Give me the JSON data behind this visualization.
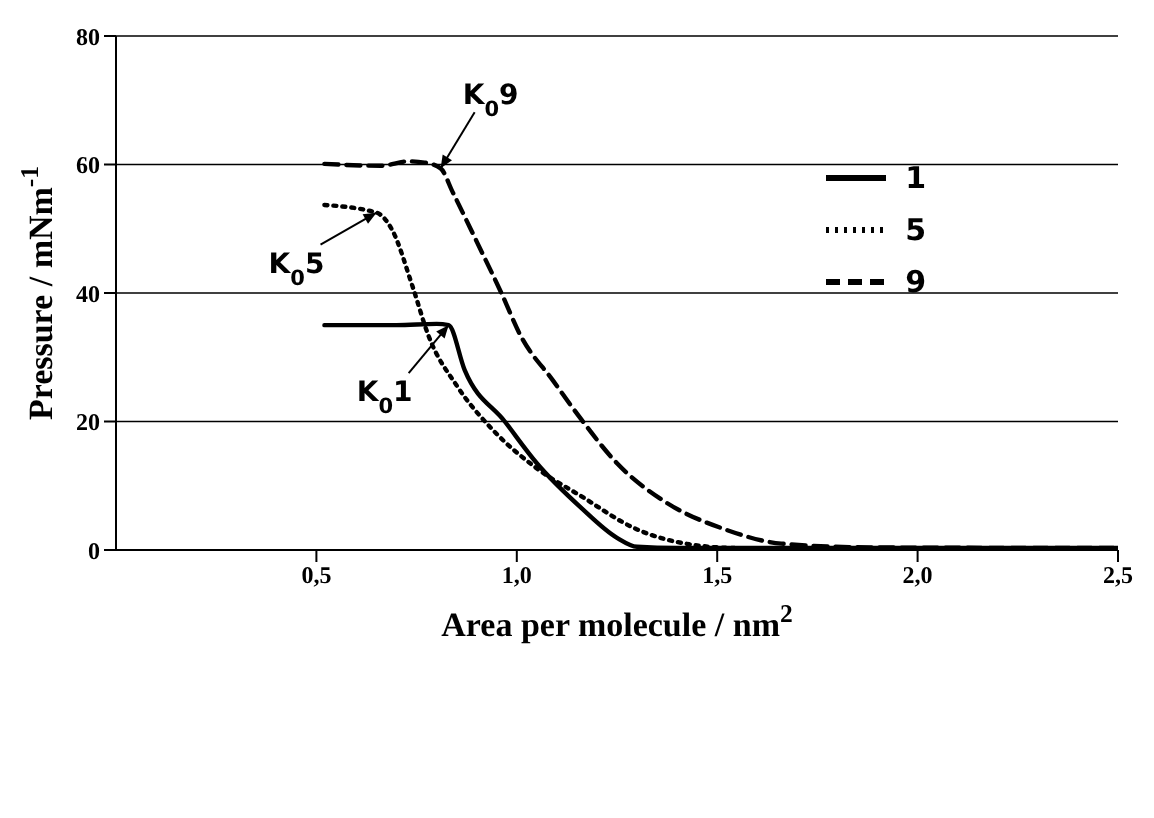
{
  "chart_data": {
    "type": "line",
    "xlabel": "Area per molecule / nm$^{2}$",
    "ylabel": "Pressure / mNm$^{-1}$",
    "xlim": [
      0,
      2.5
    ],
    "ylim": [
      0,
      80
    ],
    "xticks": [
      {
        "value": 0.5,
        "label": "0,5"
      },
      {
        "value": 1,
        "label": "1,0"
      },
      {
        "value": 1.5,
        "label": "1,5"
      },
      {
        "value": 2,
        "label": "2,0"
      },
      {
        "value": 2.5,
        "label": "2,5"
      }
    ],
    "yticks": [
      0,
      20,
      40,
      60,
      80
    ],
    "grid": "y",
    "legend": "top right",
    "marker": "none",
    "series": [
      {
        "name": "1",
        "color": "#000000",
        "line_style": "solid",
        "x": [
          0.52,
          0.7,
          0.8,
          0.83,
          0.87,
          0.97,
          1.05,
          1.16,
          1.25,
          1.3,
          1.4,
          2.0,
          2.5
        ],
        "values": [
          35,
          35,
          35.2,
          35,
          28,
          20,
          13.5,
          6.6,
          1.9,
          0.5,
          0.3,
          0.3,
          0.3
        ]
      },
      {
        "name": "5",
        "color": "#000000",
        "line_style": "dotted",
        "x": [
          0.52,
          0.65,
          0.69,
          0.74,
          0.78,
          0.85,
          0.94,
          1.05,
          1.16,
          1.3,
          1.43,
          1.55,
          2.0,
          2.5
        ],
        "values": [
          53.7,
          52.5,
          49.7,
          41,
          33.3,
          25.6,
          18.7,
          12.7,
          8.4,
          3.2,
          0.9,
          0.3,
          0.2,
          0.2
        ]
      },
      {
        "name": "9",
        "color": "#000000",
        "line_style": "dashed",
        "x": [
          0.52,
          0.66,
          0.73,
          0.77,
          0.81,
          0.84,
          0.9,
          0.96,
          1.01,
          1.09,
          1.16,
          1.25,
          1.37,
          1.52,
          1.66,
          1.88,
          2.5
        ],
        "values": [
          60.1,
          59.8,
          60.5,
          60.3,
          59.4,
          55.7,
          48,
          40.2,
          33.3,
          26.4,
          20.4,
          13.5,
          7.5,
          3.2,
          1,
          0.4,
          0.3
        ]
      }
    ],
    "annotations": [
      {
        "text": "K$_{0}$9",
        "x": 0.81,
        "y": 59.4
      },
      {
        "text": "K$_{0}$5",
        "x": 0.65,
        "y": 52.5
      },
      {
        "text": "K$_{0}$1",
        "x": 0.83,
        "y": 35
      }
    ]
  }
}
